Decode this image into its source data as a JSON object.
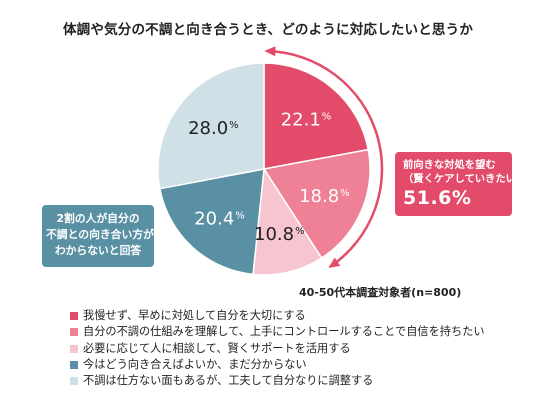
{
  "title": "体調や気分の不調と向き合うとき、どのように対応したいと思うか",
  "chart_data": {
    "type": "pie",
    "start": "top",
    "direction": "clockwise",
    "slices": [
      {
        "label": "我慢せず、早めに対処して自分を大切にする",
        "value": 22.1,
        "display": "22.1%",
        "color": "#e34b6b",
        "text_color": "#ffffff"
      },
      {
        "label": "自分の不調の仕組みを理解して、上手にコントロールすることで自信を持ちたい",
        "value": 18.8,
        "display": "18.8%",
        "color": "#ef8197",
        "text_color": "#ffffff"
      },
      {
        "label": "必要に応じて人に相談して、賢くサポートを活用する",
        "value": 10.8,
        "display": "10.8%",
        "color": "#f7c5cf",
        "text_color": "#222222"
      },
      {
        "label": "今はどう向き合えばよいか、まだ分からない",
        "value": 20.4,
        "display": "20.4%",
        "color": "#5990a4",
        "text_color": "#ffffff"
      },
      {
        "label": "不調は仕方ない面もあるが、工夫して自分なりに調整する",
        "value": 28.0,
        "display": "28.0%",
        "color": "#cfe0e7",
        "text_color": "#222222"
      }
    ]
  },
  "callout_right": {
    "line1": "前向きな対処を望む",
    "line2": "（賢くケアしていきたい）",
    "value": "51.6%"
  },
  "callout_left": {
    "line1": "2割の人が自分の",
    "line2": "不調との向き合い方が",
    "line3": "わからないと回答"
  },
  "note": "40-50代本調査対象者(n=800)",
  "colors": {
    "arrow": "#e34b6b"
  }
}
